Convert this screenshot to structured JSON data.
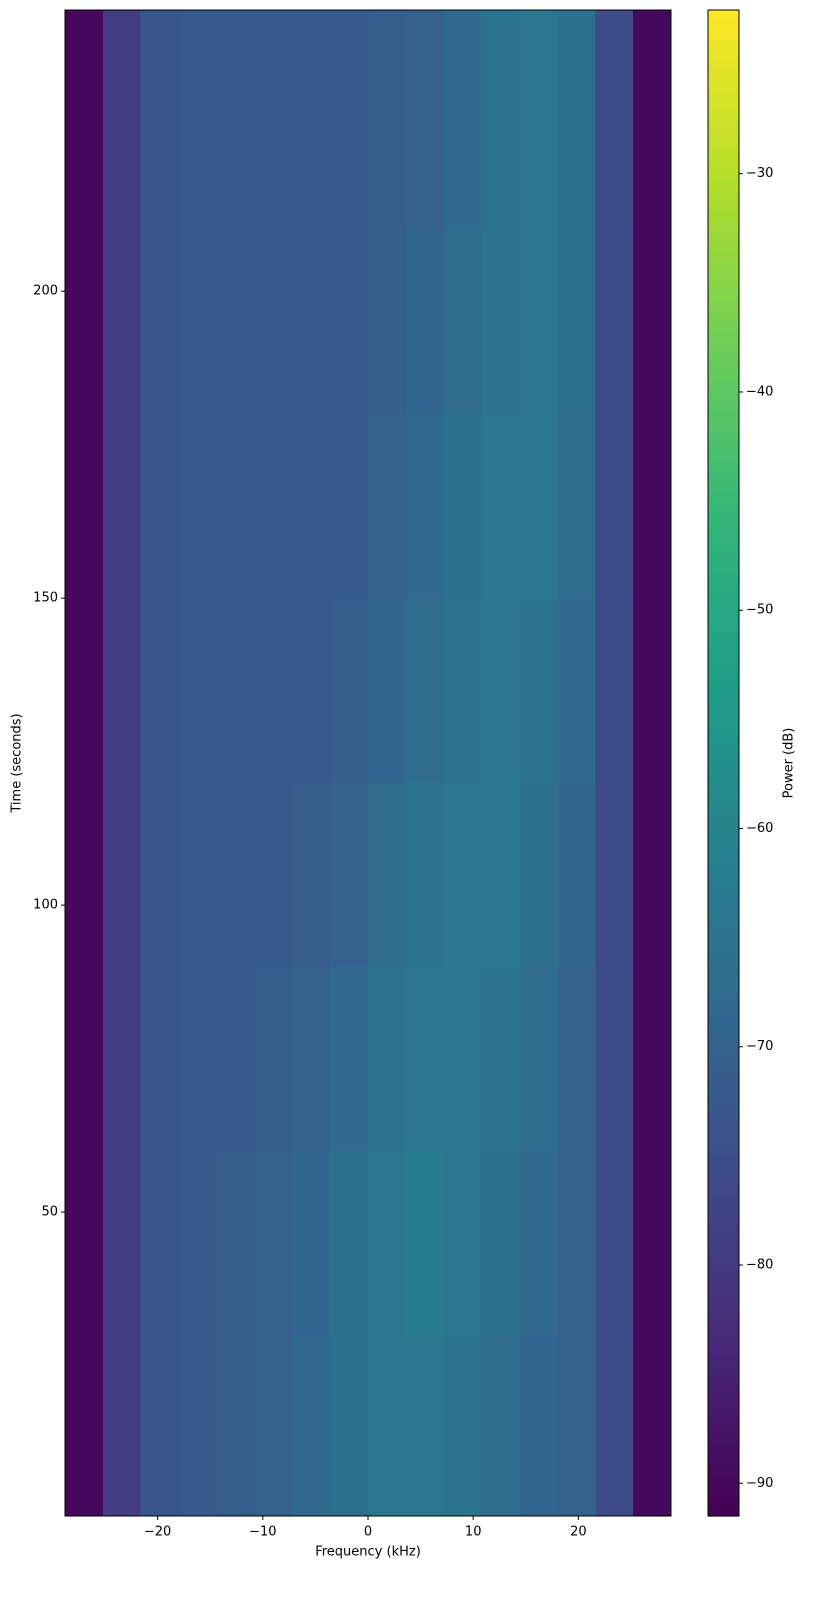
{
  "chart_data": {
    "type": "heatmap",
    "xlabel": "Frequency (kHz)",
    "ylabel": "Time (seconds)",
    "colorbar_label": "Power (dB)",
    "colormap": "viridis",
    "x_edges": [
      -28.8,
      -25.2,
      -21.6,
      -18,
      -14.4,
      -10.8,
      -7.2,
      -3.6,
      0,
      3.6,
      7.2,
      10.8,
      14.4,
      18,
      21.6,
      25.2,
      28.8
    ],
    "y_edges": [
      0.5,
      30,
      60,
      90,
      120,
      150,
      180,
      210,
      245.8
    ],
    "values": [
      [
        -90,
        -79,
        -73,
        -72,
        -71,
        -70,
        -68,
        -66,
        -64,
        -64,
        -65,
        -67,
        -69,
        -70,
        -76,
        -90
      ],
      [
        -90,
        -79,
        -73,
        -72,
        -71,
        -70,
        -69,
        -66,
        -64,
        -63,
        -64,
        -66,
        -68,
        -70,
        -76,
        -90
      ],
      [
        -90,
        -79,
        -73,
        -72,
        -72,
        -71,
        -70,
        -68,
        -65,
        -64,
        -64,
        -65,
        -67,
        -70,
        -76,
        -90
      ],
      [
        -90,
        -79,
        -73,
        -72,
        -72,
        -72,
        -71,
        -70,
        -67,
        -65,
        -64,
        -64,
        -66,
        -69,
        -76,
        -90
      ],
      [
        -90,
        -79,
        -73,
        -72,
        -72,
        -72,
        -72,
        -71,
        -69,
        -67,
        -65,
        -64,
        -65,
        -68,
        -76,
        -90
      ],
      [
        -90,
        -79,
        -73,
        -72,
        -72,
        -72,
        -72,
        -72,
        -70,
        -68,
        -66,
        -64,
        -64,
        -67,
        -76,
        -90
      ],
      [
        -90,
        -79,
        -73,
        -72,
        -72,
        -72,
        -72,
        -72,
        -71,
        -69,
        -67,
        -65,
        -64,
        -66,
        -76,
        -90
      ],
      [
        -90,
        -79,
        -73,
        -72,
        -72,
        -72,
        -72,
        -72,
        -71,
        -70,
        -68,
        -65,
        -64,
        -66,
        -76,
        -90
      ]
    ],
    "xlim": [
      -28.8,
      28.8
    ],
    "ylim": [
      0.5,
      245.8
    ],
    "clim": [
      -91.5,
      -22.5
    ],
    "xticks": [
      {
        "value": -20,
        "label": "−20"
      },
      {
        "value": -10,
        "label": "−10"
      },
      0,
      10,
      20
    ],
    "yticks": [
      50,
      100,
      150,
      200
    ],
    "cticks": [
      {
        "value": -90,
        "label": "−90"
      },
      {
        "value": -80,
        "label": "−80"
      },
      {
        "value": -70,
        "label": "−70"
      },
      {
        "value": -60,
        "label": "−60"
      },
      {
        "value": -50,
        "label": "−50"
      },
      {
        "value": -40,
        "label": "−40"
      },
      {
        "value": -30,
        "label": "−30"
      }
    ]
  }
}
